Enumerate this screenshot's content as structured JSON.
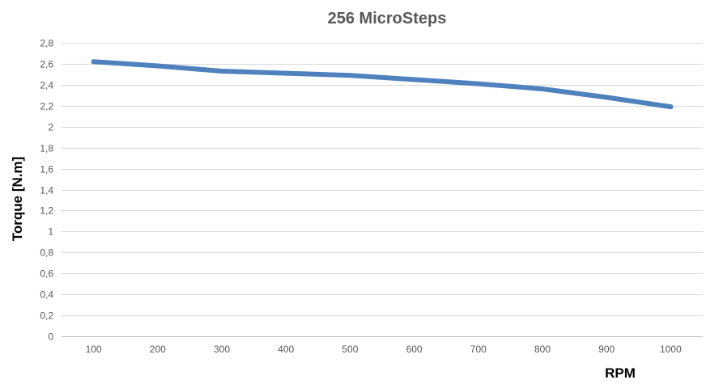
{
  "chart_data": {
    "type": "line",
    "title": "256 MicroSteps",
    "xlabel": "RPM",
    "ylabel": "Torque [N.m]",
    "categories": [
      "100",
      "200",
      "300",
      "400",
      "500",
      "600",
      "700",
      "800",
      "900",
      "1000"
    ],
    "series": [
      {
        "values": [
          2.62,
          2.58,
          2.53,
          2.51,
          2.49,
          2.45,
          2.41,
          2.36,
          2.28,
          2.19
        ],
        "color": "#4f81bd"
      }
    ],
    "ylim": [
      0,
      2.8
    ],
    "yticks": [
      "0",
      "0,2",
      "0,4",
      "0,6",
      "0,8",
      "1",
      "1,2",
      "1,4",
      "1,6",
      "1,8",
      "2",
      "2,2",
      "2,4",
      "2,6",
      "2,8"
    ],
    "grid": true,
    "legend": "none"
  }
}
